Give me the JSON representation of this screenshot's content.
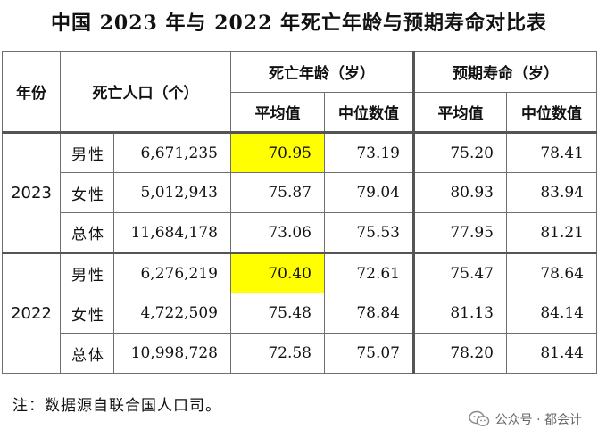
{
  "title": "中国 2023 年与 2022 年死亡年龄与预期寿命对比表",
  "header": {
    "year_label": "年份",
    "deaths_label": "死亡人口（个）",
    "death_age_label": "死亡年龄（岁）",
    "life_exp_label": "预期寿命（岁）",
    "mean_label": "平均值",
    "median_label": "中位数值"
  },
  "groups": [
    {
      "year": "2023",
      "rows": [
        {
          "label": "男性",
          "deaths": "6,671,235",
          "death_mean": "70.95",
          "death_median": "73.19",
          "life_mean": "75.20",
          "life_median": "78.41"
        },
        {
          "label": "女性",
          "deaths": "5,012,943",
          "death_mean": "75.87",
          "death_median": "79.04",
          "life_mean": "80.93",
          "life_median": "83.94"
        },
        {
          "label": "总体",
          "deaths": "11,684,178",
          "death_mean": "73.06",
          "death_median": "75.53",
          "life_mean": "77.95",
          "life_median": "81.21"
        }
      ]
    },
    {
      "year": "2022",
      "rows": [
        {
          "label": "男性",
          "deaths": "6,276,219",
          "death_mean": "70.40",
          "death_median": "72.61",
          "life_mean": "75.47",
          "life_median": "78.64"
        },
        {
          "label": "女性",
          "deaths": "4,722,509",
          "death_mean": "75.48",
          "death_median": "78.84",
          "life_mean": "81.13",
          "life_median": "84.14"
        },
        {
          "label": "总体",
          "deaths": "10,998,728",
          "death_mean": "72.58",
          "death_median": "75.07",
          "life_mean": "78.20",
          "life_median": "81.44"
        }
      ]
    }
  ],
  "note": "注：数据源自联合国人口司。",
  "watermark": "公众号 · 都会计",
  "colors": {
    "highlight": "#ffff00",
    "border": "#6f6f6f"
  },
  "icons": {
    "watermark": "wechat-icon"
  }
}
